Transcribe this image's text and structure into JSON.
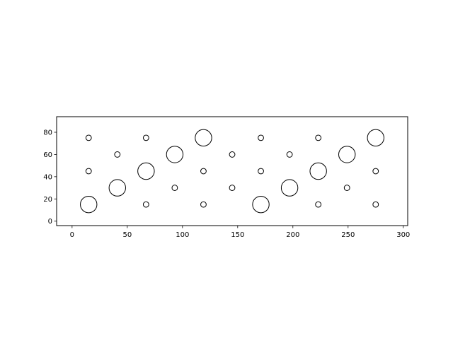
{
  "chart_data": {
    "type": "scatter",
    "title": "",
    "xlabel": "",
    "ylabel": "",
    "xlim": [
      -14,
      304
    ],
    "ylim": [
      -4,
      94
    ],
    "xticks": [
      0,
      50,
      100,
      150,
      200,
      250,
      300
    ],
    "yticks": [
      0,
      20,
      40,
      60,
      80
    ],
    "xtick_labels": [
      "0",
      "50",
      "100",
      "150",
      "200",
      "250",
      "300"
    ],
    "ytick_labels": [
      "0",
      "20",
      "40",
      "60",
      "80"
    ],
    "grid": false,
    "aspect": "equal",
    "marker_style": "unfilled circle",
    "series": [
      {
        "radius": 7.5,
        "points": [
          [
            15,
            15
          ],
          [
            41,
            30
          ],
          [
            67,
            45
          ],
          [
            93,
            60
          ],
          [
            119,
            75
          ],
          [
            171,
            15
          ],
          [
            197,
            30
          ],
          [
            223,
            45
          ],
          [
            249,
            60
          ],
          [
            275,
            75
          ]
        ]
      },
      {
        "radius": 2.5,
        "points": [
          [
            15,
            45
          ],
          [
            15,
            75
          ],
          [
            41,
            60
          ],
          [
            67,
            15
          ],
          [
            67,
            75
          ],
          [
            93,
            30
          ],
          [
            119,
            15
          ],
          [
            119,
            45
          ],
          [
            145,
            30
          ],
          [
            145,
            60
          ],
          [
            171,
            45
          ],
          [
            171,
            75
          ],
          [
            197,
            60
          ],
          [
            223,
            15
          ],
          [
            223,
            75
          ],
          [
            249,
            30
          ],
          [
            275,
            15
          ],
          [
            275,
            45
          ]
        ]
      }
    ]
  },
  "colors": {
    "edge": "#000000",
    "face": "none",
    "background": "#ffffff"
  }
}
